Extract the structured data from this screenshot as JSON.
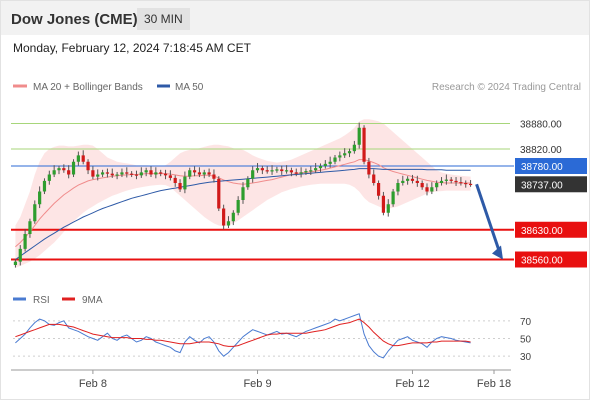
{
  "header": {
    "title": "Dow Jones (CME)",
    "interval": "30 MIN"
  },
  "timestamp": "Monday, February 12, 2024 7:18:45 AM CET",
  "legend": [
    {
      "label": "MA 20 + Bollinger Bands",
      "color": "#f08c8c"
    },
    {
      "label": "MA 50",
      "color": "#2e5aa7"
    }
  ],
  "credit": "Research © 2024 Trading Central",
  "colors": {
    "up": "#2e9d2e",
    "down": "#d11a1a",
    "support": "#e81010",
    "ma50": "#2e5aa7",
    "ma20": "#f08c8c",
    "band": "#fde0e0",
    "resistance_line": "#a7d67a",
    "arrow": "#2e5aa7",
    "current_price_box": "#333333",
    "pivot_box": "#2b6ad6"
  },
  "chart_data": [
    {
      "type": "candlestick",
      "ylim": [
        38540,
        38940
      ],
      "x_tick_labels": [
        "Feb 8",
        "Feb 9",
        "Feb 12",
        "Feb 18"
      ],
      "current_price": "38737.00",
      "levels": [
        {
          "label": "38880.00",
          "value": 38880,
          "role": "resistance"
        },
        {
          "label": "38820.00",
          "value": 38820,
          "role": "resistance"
        },
        {
          "label": "38780.00",
          "value": 38780,
          "role": "pivot"
        },
        {
          "label": "38630.00",
          "value": 38630,
          "role": "support"
        },
        {
          "label": "38560.00",
          "value": 38560,
          "role": "support"
        }
      ],
      "forecast": {
        "from": 38737,
        "to": 38560
      },
      "close": [
        38555,
        38585,
        38620,
        38650,
        38690,
        38720,
        38745,
        38760,
        38770,
        38775,
        38770,
        38760,
        38790,
        38805,
        38790,
        38770,
        38755,
        38760,
        38765,
        38762,
        38758,
        38760,
        38765,
        38762,
        38760,
        38758,
        38765,
        38770,
        38760,
        38765,
        38762,
        38758,
        38752,
        38740,
        38725,
        38755,
        38770,
        38765,
        38760,
        38765,
        38760,
        38750,
        38680,
        38640,
        38650,
        38670,
        38700,
        38730,
        38750,
        38770,
        38775,
        38770,
        38768,
        38770,
        38772,
        38768,
        38770,
        38765,
        38762,
        38765,
        38768,
        38770,
        38775,
        38780,
        38785,
        38790,
        38800,
        38805,
        38810,
        38815,
        38830,
        38870,
        38790,
        38760,
        38740,
        38710,
        38670,
        38690,
        38720,
        38740,
        38745,
        38750,
        38745,
        38740,
        38730,
        38720,
        38730,
        38740,
        38745,
        38748,
        38745,
        38742,
        38740,
        38738,
        38737
      ],
      "ma20": [
        38590,
        38600,
        38612,
        38625,
        38640,
        38655,
        38668,
        38680,
        38692,
        38702,
        38712,
        38720,
        38728,
        38735,
        38740,
        38745,
        38748,
        38750,
        38752,
        38754,
        38756,
        38757,
        38758,
        38759,
        38760,
        38760,
        38761,
        38762,
        38762,
        38762,
        38762,
        38762,
        38761,
        38759,
        38757,
        38756,
        38756,
        38757,
        38757,
        38758,
        38758,
        38756,
        38752,
        38747,
        38743,
        38740,
        38738,
        38737,
        38738,
        38740,
        38742,
        38744,
        38746,
        38748,
        38751,
        38754,
        38757,
        38760,
        38762,
        38764,
        38765,
        38766,
        38768,
        38770,
        38772,
        38775,
        38778,
        38781,
        38784,
        38787,
        38790,
        38795,
        38795,
        38792,
        38788,
        38783,
        38776,
        38771,
        38767,
        38764,
        38761,
        38758,
        38755,
        38752,
        38749,
        38746,
        38744,
        38742,
        38741,
        38740,
        38740,
        38740,
        38740,
        38740,
        38740
      ],
      "ma50": [
        38560,
        38568,
        38576,
        38584,
        38592,
        38600,
        38608,
        38615,
        38622,
        38629,
        38636,
        38642,
        38648,
        38654,
        38660,
        38665,
        38670,
        38675,
        38680,
        38684,
        38688,
        38692,
        38696,
        38700,
        38704,
        38707,
        38710,
        38713,
        38716,
        38719,
        38722,
        38724,
        38726,
        38728,
        38730,
        38732,
        38734,
        38736,
        38738,
        38740,
        38742,
        38743,
        38744,
        38745,
        38746,
        38747,
        38748,
        38749,
        38750,
        38751,
        38752,
        38753,
        38754,
        38755,
        38756,
        38757,
        38758,
        38759,
        38760,
        38761,
        38762,
        38763,
        38764,
        38765,
        38766,
        38767,
        38768,
        38769,
        38770,
        38771,
        38772,
        38774,
        38774,
        38774,
        38774,
        38773,
        38772,
        38772,
        38772,
        38772,
        38772,
        38772,
        38772,
        38772,
        38772,
        38771,
        38771,
        38771,
        38771,
        38770,
        38770,
        38770,
        38770,
        38770,
        38770
      ],
      "bb_upper": [
        38640,
        38660,
        38690,
        38720,
        38760,
        38790,
        38810,
        38820,
        38825,
        38828,
        38828,
        38826,
        38826,
        38828,
        38830,
        38830,
        38828,
        38820,
        38810,
        38800,
        38795,
        38790,
        38788,
        38786,
        38784,
        38782,
        38782,
        38782,
        38781,
        38780,
        38780,
        38782,
        38790,
        38800,
        38810,
        38815,
        38818,
        38820,
        38822,
        38825,
        38828,
        38830,
        38830,
        38828,
        38826,
        38822,
        38820,
        38818,
        38812,
        38805,
        38800,
        38796,
        38792,
        38790,
        38788,
        38790,
        38792,
        38795,
        38800,
        38805,
        38810,
        38815,
        38820,
        38825,
        38830,
        38835,
        38840,
        38845,
        38852,
        38860,
        38870,
        38885,
        38890,
        38890,
        38888,
        38885,
        38880,
        38870,
        38860,
        38850,
        38840,
        38830,
        38820,
        38810,
        38800,
        38790,
        38780,
        38770,
        38765,
        38762,
        38760,
        38758,
        38757,
        38756,
        38755
      ],
      "bb_lower": [
        38540,
        38545,
        38550,
        38555,
        38562,
        38570,
        38580,
        38590,
        38600,
        38612,
        38625,
        38638,
        38650,
        38660,
        38670,
        38678,
        38685,
        38692,
        38698,
        38704,
        38710,
        38714,
        38718,
        38722,
        38725,
        38728,
        38730,
        38732,
        38734,
        38735,
        38736,
        38735,
        38730,
        38720,
        38710,
        38700,
        38690,
        38680,
        38670,
        38660,
        38652,
        38645,
        38640,
        38638,
        38640,
        38645,
        38652,
        38660,
        38668,
        38676,
        38684,
        38692,
        38700,
        38706,
        38712,
        38718,
        38722,
        38726,
        38729,
        38732,
        38734,
        38736,
        38737,
        38738,
        38738,
        38738,
        38738,
        38738,
        38738,
        38736,
        38730,
        38720,
        38705,
        38695,
        38690,
        38685,
        38680,
        38680,
        38682,
        38685,
        38690,
        38695,
        38700,
        38705,
        38710,
        38715,
        38718,
        38720,
        38721,
        38722,
        38722,
        38722,
        38722,
        38722,
        38722
      ]
    },
    {
      "type": "line",
      "legend": [
        {
          "label": "RSI",
          "color": "#4a7bd1"
        },
        {
          "label": "9MA",
          "color": "#e02020"
        }
      ],
      "ylim": [
        20,
        80
      ],
      "y_tick_labels": [
        "70",
        "50",
        "30"
      ],
      "y_ticks": [
        70,
        50,
        30
      ],
      "rsi": [
        45,
        50,
        55,
        62,
        68,
        72,
        70,
        66,
        65,
        68,
        70,
        62,
        60,
        58,
        55,
        52,
        50,
        48,
        52,
        56,
        50,
        48,
        52,
        54,
        50,
        46,
        48,
        52,
        50,
        46,
        44,
        42,
        40,
        36,
        34,
        46,
        52,
        48,
        45,
        50,
        52,
        46,
        36,
        30,
        34,
        40,
        46,
        52,
        56,
        60,
        58,
        56,
        54,
        56,
        58,
        55,
        56,
        54,
        52,
        55,
        58,
        60,
        62,
        64,
        66,
        68,
        72,
        70,
        72,
        74,
        76,
        78,
        55,
        42,
        35,
        30,
        28,
        36,
        42,
        48,
        50,
        52,
        48,
        46,
        44,
        40,
        46,
        50,
        52,
        51,
        50,
        48,
        47,
        46,
        45
      ],
      "ma9": [
        52,
        54,
        56,
        58,
        60,
        62,
        64,
        66,
        66,
        66,
        65,
        64,
        63,
        61,
        59,
        57,
        55,
        54,
        53,
        52,
        51,
        51,
        51,
        51,
        50,
        50,
        50,
        49,
        49,
        48,
        48,
        47,
        46,
        45,
        44,
        44,
        44,
        45,
        46,
        46,
        46,
        45,
        44,
        42,
        41,
        41,
        42,
        44,
        46,
        48,
        50,
        52,
        54,
        55,
        55,
        56,
        56,
        56,
        56,
        56,
        56,
        57,
        58,
        59,
        60,
        62,
        64,
        66,
        67,
        68,
        70,
        72,
        68,
        63,
        57,
        52,
        47,
        44,
        42,
        42,
        43,
        44,
        45,
        45,
        45,
        45,
        46,
        46,
        47,
        47,
        47,
        47,
        47,
        47,
        46
      ]
    }
  ]
}
